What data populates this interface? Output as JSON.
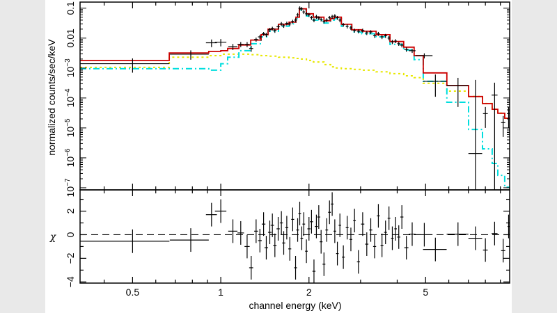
{
  "chart_data": [
    {
      "type": "line",
      "panel": "spectrum",
      "ylabel": "normalized counts/sec/keV",
      "xscale": "log",
      "yscale": "log",
      "xlim": [
        0.331,
        9.68
      ],
      "ylim": [
        8.5e-08,
        0.16
      ],
      "yticks": [
        {
          "value": 0.1,
          "label": "0.1"
        },
        {
          "value": 0.01,
          "label": "0.01"
        },
        {
          "value": 0.001,
          "base": "10",
          "exp": "−3"
        },
        {
          "value": 0.0001,
          "base": "10",
          "exp": "−4"
        },
        {
          "value": 1e-05,
          "base": "10",
          "exp": "−5"
        },
        {
          "value": 1e-06,
          "base": "10",
          "exp": "−6"
        },
        {
          "value": 1e-07,
          "base": "10",
          "exp": "−7"
        }
      ],
      "model_bin_edges_keV": [
        0.331,
        0.667,
        0.91,
        1.0,
        1.056,
        1.153,
        1.265,
        1.373,
        1.45,
        1.574,
        1.71,
        1.805,
        1.855,
        1.96,
        2.07,
        2.25,
        2.37,
        2.44,
        2.58,
        2.8,
        3.03,
        3.39,
        3.78,
        4.21,
        4.57,
        4.91,
        5.91,
        7.01,
        7.82,
        8.44,
        8.82,
        9.31,
        9.68
      ],
      "models": [
        {
          "color": "#cc0000",
          "style": "solid",
          "values": [
            0.0018,
            0.0032,
            0.0036,
            0.0038,
            0.0045,
            0.0059,
            0.0086,
            0.013,
            0.02,
            0.029,
            0.034,
            0.05,
            0.095,
            0.065,
            0.05,
            0.038,
            0.045,
            0.05,
            0.029,
            0.019,
            0.017,
            0.013,
            0.0077,
            0.005,
            0.0026,
            0.00069,
            0.00026,
            0.000112,
            6.5e-05,
            4.2e-05,
            3.1e-05,
            2.1e-05
          ]
        },
        {
          "color": "#00dede",
          "style": "dash-dot",
          "values": [
            0.00095,
            0.00095,
            0.00085,
            0.0014,
            0.0023,
            0.0038,
            0.0065,
            0.011,
            0.017,
            0.025,
            0.03,
            0.045,
            0.088,
            0.055,
            0.04,
            0.032,
            0.04,
            0.045,
            0.025,
            0.016,
            0.014,
            0.011,
            0.0062,
            0.004,
            0.0019,
            0.00036,
            7.2e-05,
            8.9e-06,
            2e-06,
            6.5e-07,
            2.6e-07,
            1.05e-07
          ]
        },
        {
          "color": "#e8e800",
          "style": "dotted",
          "values": [
            0.00105,
            0.0023,
            0.0026,
            0.0029,
            0.0029,
            0.0029,
            0.0028,
            0.0026,
            0.0025,
            0.0023,
            0.0022,
            0.0021,
            0.002,
            0.0018,
            0.0016,
            0.0013,
            0.0011,
            0.001,
            0.00095,
            0.0009,
            0.00085,
            0.00075,
            0.00065,
            0.00055,
            0.00048,
            0.00031,
            0.00017,
            0.000112,
            6.5e-05,
            4.2e-05,
            3.1e-05,
            2.1e-05
          ]
        }
      ],
      "data_color": "#000000",
      "data_fields": [
        "energy_keV",
        "energy_halfwidth_keV",
        "rate",
        "rate_err",
        "chi"
      ],
      "data": [
        [
          0.5,
          0.168,
          0.0014,
          0.0007,
          -0.55
        ],
        [
          0.79,
          0.12,
          0.0029,
          0.001,
          -0.45
        ],
        [
          0.93,
          0.04,
          0.007,
          0.002,
          1.7
        ],
        [
          1.0,
          0.045,
          0.0073,
          0.002,
          2.0
        ],
        [
          1.1,
          0.04,
          0.0052,
          0.0012,
          0.3
        ],
        [
          1.17,
          0.03,
          0.0062,
          0.0012,
          0.15
        ],
        [
          1.23,
          0.025,
          0.0062,
          0.0012,
          -1.0
        ],
        [
          1.27,
          0.02,
          0.0045,
          0.001,
          -2.8
        ],
        [
          1.32,
          0.02,
          0.009,
          0.0014,
          0.3
        ],
        [
          1.36,
          0.02,
          0.011,
          0.0017,
          -0.5
        ],
        [
          1.4,
          0.02,
          0.014,
          0.002,
          0.9
        ],
        [
          1.43,
          0.02,
          0.013,
          0.002,
          -1.1
        ],
        [
          1.47,
          0.02,
          0.019,
          0.003,
          0.2
        ],
        [
          1.5,
          0.02,
          0.021,
          0.003,
          0.8
        ],
        [
          1.53,
          0.02,
          0.018,
          0.003,
          -0.9
        ],
        [
          1.57,
          0.02,
          0.024,
          0.004,
          0.5
        ],
        [
          1.61,
          0.02,
          0.03,
          0.0045,
          1.0
        ],
        [
          1.64,
          0.02,
          0.026,
          0.004,
          -0.7
        ],
        [
          1.68,
          0.02,
          0.031,
          0.0045,
          0.6
        ],
        [
          1.72,
          0.02,
          0.03,
          0.0045,
          -1.2
        ],
        [
          1.76,
          0.02,
          0.036,
          0.005,
          1.3
        ],
        [
          1.8,
          0.02,
          0.04,
          0.006,
          -2.8
        ],
        [
          1.83,
          0.02,
          0.06,
          0.009,
          0.4
        ],
        [
          1.86,
          0.02,
          0.1,
          0.015,
          1.8
        ],
        [
          1.89,
          0.02,
          0.095,
          0.014,
          -0.3
        ],
        [
          1.92,
          0.02,
          0.075,
          0.011,
          0.9
        ],
        [
          1.96,
          0.02,
          0.065,
          0.01,
          -1.4
        ],
        [
          2.0,
          0.025,
          0.06,
          0.009,
          0.5
        ],
        [
          2.04,
          0.025,
          0.048,
          0.007,
          1.1
        ],
        [
          2.08,
          0.025,
          0.04,
          0.006,
          -3.1
        ],
        [
          2.12,
          0.025,
          0.052,
          0.008,
          0.7
        ],
        [
          2.16,
          0.025,
          0.047,
          0.007,
          1.5
        ],
        [
          2.2,
          0.025,
          0.042,
          0.006,
          -0.6
        ],
        [
          2.25,
          0.025,
          0.036,
          0.005,
          -2.5
        ],
        [
          2.3,
          0.025,
          0.04,
          0.006,
          0.4
        ],
        [
          2.35,
          0.025,
          0.048,
          0.007,
          1.9
        ],
        [
          2.4,
          0.025,
          0.052,
          0.008,
          2.6
        ],
        [
          2.45,
          0.025,
          0.055,
          0.008,
          0.3
        ],
        [
          2.5,
          0.025,
          0.048,
          0.007,
          -1.6
        ],
        [
          2.55,
          0.025,
          0.04,
          0.006,
          0.8
        ],
        [
          2.62,
          0.03,
          0.028,
          0.004,
          -1.9
        ],
        [
          2.7,
          0.03,
          0.025,
          0.004,
          0.6
        ],
        [
          2.78,
          0.03,
          0.022,
          0.0033,
          -0.4
        ],
        [
          2.86,
          0.03,
          0.018,
          0.0027,
          1.2
        ],
        [
          2.95,
          0.035,
          0.017,
          0.0026,
          -2.3
        ],
        [
          3.05,
          0.04,
          0.018,
          0.0027,
          0.9
        ],
        [
          3.15,
          0.04,
          0.015,
          0.0023,
          -0.8
        ],
        [
          3.25,
          0.04,
          0.016,
          0.0024,
          0.4
        ],
        [
          3.35,
          0.04,
          0.012,
          0.0018,
          -1.0
        ],
        [
          3.45,
          0.04,
          0.014,
          0.0021,
          1.6
        ],
        [
          3.55,
          0.04,
          0.011,
          0.0017,
          -0.9
        ],
        [
          3.65,
          0.04,
          0.012,
          0.0018,
          0.2
        ],
        [
          3.75,
          0.04,
          0.01,
          0.0015,
          1.4
        ],
        [
          3.85,
          0.04,
          0.0075,
          0.0012,
          -0.3
        ],
        [
          3.95,
          0.04,
          0.008,
          0.0012,
          0.5
        ],
        [
          4.05,
          0.05,
          0.0065,
          0.001,
          -0.2
        ],
        [
          4.15,
          0.05,
          0.0058,
          0.0009,
          1.5
        ],
        [
          4.3,
          0.07,
          0.0042,
          0.0007,
          -1.1
        ],
        [
          4.5,
          0.12,
          0.0038,
          0.0006,
          0.05
        ],
        [
          4.95,
          0.33,
          0.0026,
          0.0005,
          0.0
        ],
        [
          5.4,
          0.5,
          0.00036,
          0.00025,
          -1.25
        ],
        [
          6.45,
          0.55,
          0.00026,
          0.00021,
          0.05
        ],
        [
          7.4,
          0.4,
          1.4e-06,
          0.0004,
          -0.3
        ],
        [
          8.0,
          0.15,
          3e-05,
          2e-05,
          -1.3
        ],
        [
          8.6,
          0.2,
          0.000125,
          0.0002,
          0.1
        ],
        [
          9.2,
          0.15,
          1.5e-05,
          1e-05,
          -1.35
        ],
        [
          9.6,
          0.08,
          3e-05,
          2e-05,
          0.7
        ]
      ]
    },
    {
      "type": "scatter",
      "panel": "residuals",
      "xlabel": "channel energy (keV)",
      "ylabel": "χ",
      "xscale": "log",
      "xlim": [
        0.331,
        9.68
      ],
      "ylim": [
        -4.1,
        3.8
      ],
      "chi_err": 1,
      "zero_line": "dashed",
      "xticks": [
        {
          "value": 0.5,
          "label": "0.5"
        },
        {
          "value": 1,
          "label": "1"
        },
        {
          "value": 2,
          "label": "2"
        },
        {
          "value": 5,
          "label": "5"
        }
      ],
      "yticks": [
        {
          "value": 2,
          "label": "2"
        },
        {
          "value": 0,
          "label": "0"
        },
        {
          "value": -2,
          "label": "−2"
        },
        {
          "value": -4,
          "label": "−4"
        }
      ]
    }
  ]
}
